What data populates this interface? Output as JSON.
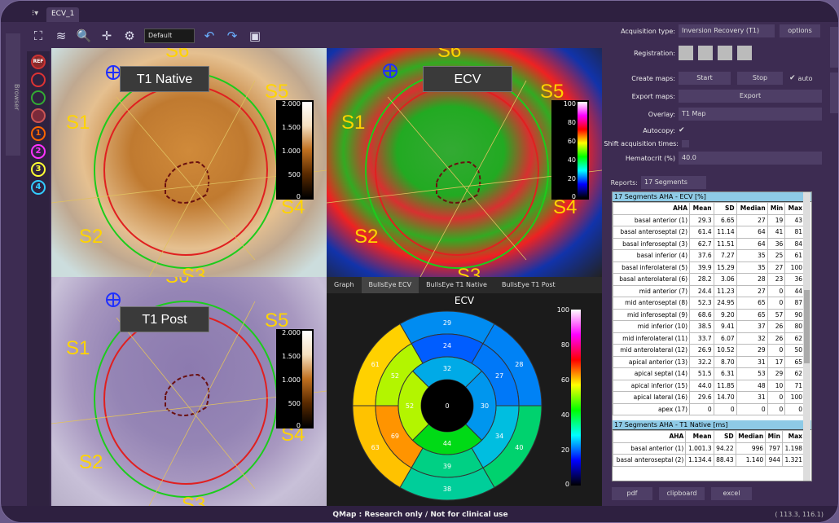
{
  "tabs": {
    "active": "ECV_1",
    "browser": "Browser"
  },
  "toolbar": {
    "preset": "Default"
  },
  "tools": [
    "REF",
    "",
    "",
    "",
    "1",
    "2",
    "3",
    "4"
  ],
  "viewers": {
    "q1": {
      "label": "T1 Native",
      "segs": [
        "S6",
        "S5",
        "S1",
        "S4",
        "S2",
        "S3"
      ],
      "cbar": [
        "2.000",
        "1.500",
        "1.000",
        "500",
        "0"
      ]
    },
    "q2": {
      "label": "ECV",
      "segs": [
        "S6",
        "S5",
        "S1",
        "S4",
        "S2",
        "S3"
      ],
      "cbar": [
        "100",
        "80",
        "60",
        "40",
        "20",
        "0"
      ]
    },
    "q3": {
      "label": "T1 Post",
      "segs": [
        "S6",
        "S5",
        "S1",
        "S4",
        "S2",
        "S3"
      ],
      "cbar": [
        "2.000",
        "1.500",
        "1.000",
        "500",
        "0"
      ]
    },
    "q4": {
      "tabs": [
        "Graph",
        "BullsEye ECV",
        "BullsEye T1 Native",
        "BullsEye T1 Post"
      ],
      "title": "ECV",
      "cbar": [
        "100",
        "80",
        "60",
        "40",
        "20",
        "0"
      ],
      "outer": [
        29,
        28,
        40,
        38,
        63,
        61
      ],
      "mid": [
        24,
        27,
        34,
        39,
        69,
        52
      ],
      "apical": [
        32,
        30,
        44,
        52
      ],
      "apex": 0
    }
  },
  "panel": {
    "acq_label": "Acquisition type:",
    "acq_value": "Inversion Recovery (T1)",
    "options": "options",
    "reg_label": "Registration:",
    "create_label": "Create maps:",
    "start": "Start",
    "stop": "Stop",
    "auto": "auto",
    "export_label": "Export maps:",
    "export": "Export",
    "overlay_label": "Overlay:",
    "overlay_value": "T1 Map",
    "autocopy_label": "Autocopy:",
    "shift_label": "Shift acquisition times:",
    "hct_label": "Hematocrit (%)",
    "hct_value": "40.0",
    "reports_label": "Reports:",
    "reports_value": "17 Segments AHA",
    "pdf": "pdf",
    "clipboard": "clipboard",
    "excel": "excel"
  },
  "report": {
    "ecv_title": "17 Segments AHA - ECV [%]",
    "headers": [
      "AHA",
      "Mean",
      "SD",
      "Median",
      "Min",
      "Max"
    ],
    "ecv_rows": [
      [
        "basal anterior (1)",
        "29.3",
        "6.65",
        "27",
        "19",
        "43"
      ],
      [
        "basal anteroseptal (2)",
        "61.4",
        "11.14",
        "64",
        "41",
        "81"
      ],
      [
        "basal inferoseptal (3)",
        "62.7",
        "11.51",
        "64",
        "36",
        "84"
      ],
      [
        "basal inferior (4)",
        "37.6",
        "7.27",
        "35",
        "25",
        "61"
      ],
      [
        "basal inferolateral (5)",
        "39.9",
        "15.29",
        "35",
        "27",
        "100"
      ],
      [
        "basal anterolateral (6)",
        "28.2",
        "3.06",
        "28",
        "23",
        "36"
      ],
      [
        "mid anterior (7)",
        "24.4",
        "11.23",
        "27",
        "0",
        "44"
      ],
      [
        "mid anteroseptal (8)",
        "52.3",
        "24.95",
        "65",
        "0",
        "87"
      ],
      [
        "mid inferoseptal (9)",
        "68.6",
        "9.20",
        "65",
        "57",
        "90"
      ],
      [
        "mid inferior (10)",
        "38.5",
        "9.41",
        "37",
        "26",
        "80"
      ],
      [
        "mid inferolateral (11)",
        "33.7",
        "6.07",
        "32",
        "26",
        "62"
      ],
      [
        "mid anterolateral (12)",
        "26.9",
        "10.52",
        "29",
        "0",
        "50"
      ],
      [
        "apical anterior (13)",
        "32.2",
        "8.70",
        "31",
        "17",
        "65"
      ],
      [
        "apical septal (14)",
        "51.5",
        "6.31",
        "53",
        "29",
        "62"
      ],
      [
        "apical inferior (15)",
        "44.0",
        "11.85",
        "48",
        "10",
        "71"
      ],
      [
        "apical lateral (16)",
        "29.6",
        "14.70",
        "31",
        "0",
        "100"
      ],
      [
        "apex (17)",
        "0",
        "0",
        "0",
        "0",
        "0"
      ]
    ],
    "t1_title": "17 Segments AHA - T1 Native [ms]",
    "t1_rows": [
      [
        "basal anterior (1)",
        "1.001.3",
        "94.22",
        "996",
        "797",
        "1.198"
      ],
      [
        "basal anteroseptal (2)",
        "1.134.4",
        "88.43",
        "1.140",
        "944",
        "1.321"
      ]
    ]
  },
  "footer": {
    "text": "QMap : Research only / Not for clinical use",
    "coords": "( 113.3, 116.1)"
  }
}
